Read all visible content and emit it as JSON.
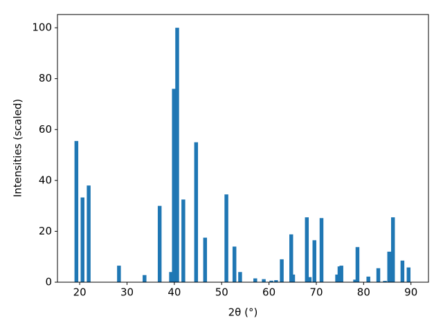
{
  "chart_data": {
    "type": "bar",
    "xlabel": "2θ (°)",
    "ylabel": "Intensities (scaled)",
    "x": [
      19.3,
      20.6,
      21.9,
      28.3,
      33.7,
      36.9,
      39.3,
      39.9,
      40.6,
      41.9,
      44.6,
      46.5,
      51.0,
      52.7,
      53.9,
      57.1,
      58.9,
      60.5,
      61.5,
      62.7,
      64.7,
      65.1,
      68.0,
      68.6,
      69.6,
      71.1,
      74.4,
      74.9,
      75.3,
      78.2,
      78.7,
      81.0,
      83.1,
      84.5,
      85.4,
      86.2,
      88.2,
      89.5
    ],
    "values": [
      55.5,
      33.3,
      38,
      6.5,
      2.8,
      30,
      4,
      76,
      100,
      32.5,
      55,
      17.5,
      34.5,
      14,
      4,
      1.5,
      1.2,
      0.6,
      0.8,
      9,
      18.8,
      3,
      25.5,
      2,
      16.5,
      25.2,
      3,
      6.2,
      6.5,
      1,
      13.8,
      2.2,
      5.5,
      0.5,
      12,
      25.5,
      8.5,
      5.8
    ],
    "color": "#1f77b4",
    "xlim": [
      15.3,
      93.7
    ],
    "xticks": [
      20,
      30,
      40,
      50,
      60,
      70,
      80,
      90
    ],
    "ylim": [
      0,
      105.2
    ],
    "yticks": [
      0,
      20,
      40,
      60,
      80,
      100
    ],
    "grid": false
  }
}
